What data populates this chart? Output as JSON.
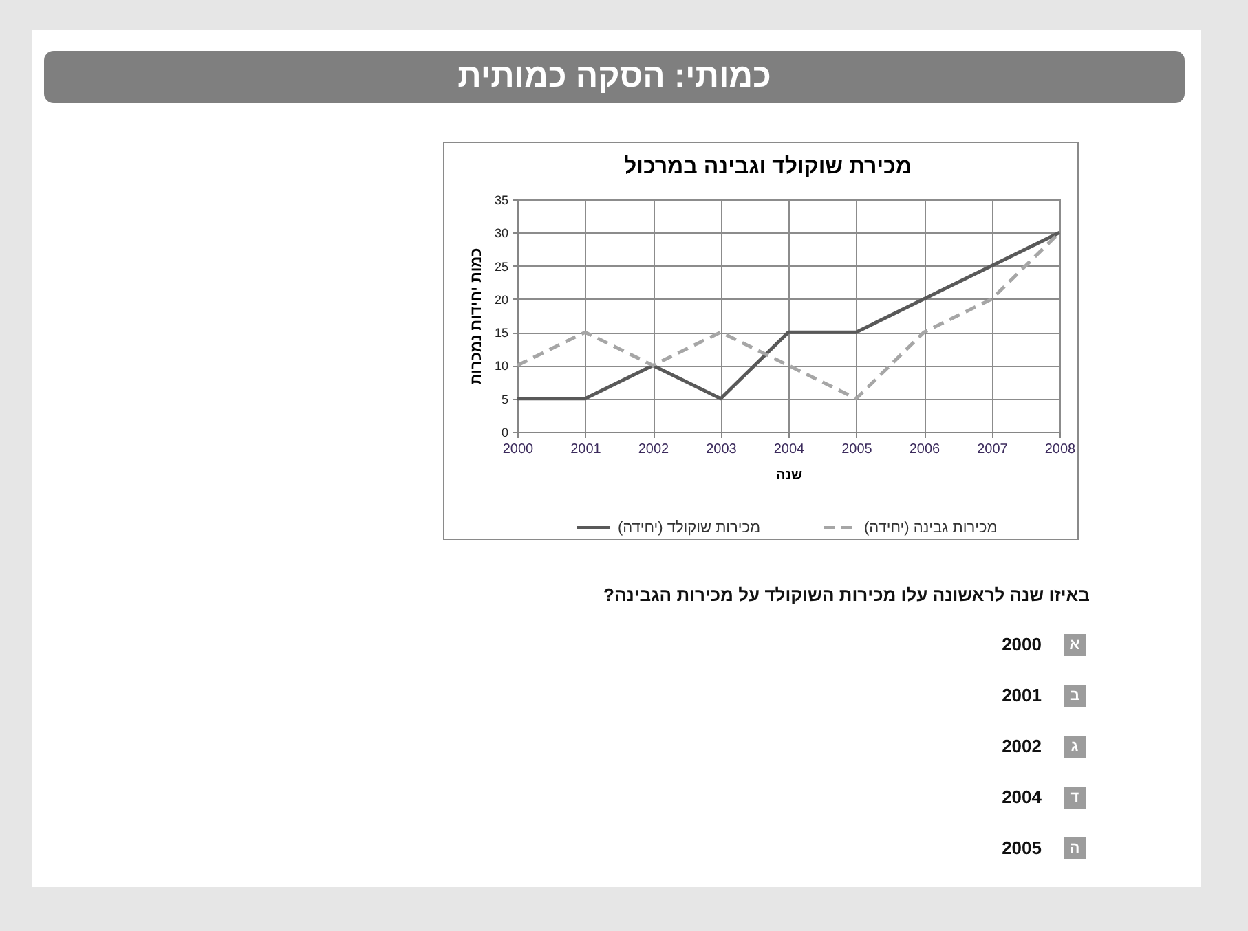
{
  "chart_data": {
    "type": "line",
    "title": "מכירת שוקולד וגבינה במרכול",
    "xlabel": "שנה",
    "ylabel": "כמות יחידות נמכרות",
    "categories": [
      "2000",
      "2001",
      "2002",
      "2003",
      "2004",
      "2005",
      "2006",
      "2007",
      "2008"
    ],
    "series": [
      {
        "name": "מכירות שוקולד (יחידה)",
        "color": "#595959",
        "line_style": "solid",
        "values": [
          5,
          5,
          10,
          5,
          15,
          15,
          20,
          25,
          30
        ]
      },
      {
        "name": "מכירות גבינה (יחידה)",
        "color": "#a6a6a6",
        "line_style": "dashed",
        "values": [
          10,
          15,
          10,
          15,
          10,
          5,
          15,
          20,
          30
        ]
      }
    ],
    "ylim": [
      0,
      35
    ],
    "yticks": [
      0,
      5,
      10,
      15,
      20,
      25,
      30,
      35
    ],
    "grid": true,
    "legend": "bottom",
    "annotations": [
      "כמותי: הסקה כמותית",
      "באיזו שנה לראשונה עלו מכירות השוקולד על מכירות הגבינה?",
      "א",
      "2000",
      "ב",
      "2001",
      "ג",
      "2002",
      "ד",
      "2004",
      "ה",
      "2005"
    ]
  }
}
